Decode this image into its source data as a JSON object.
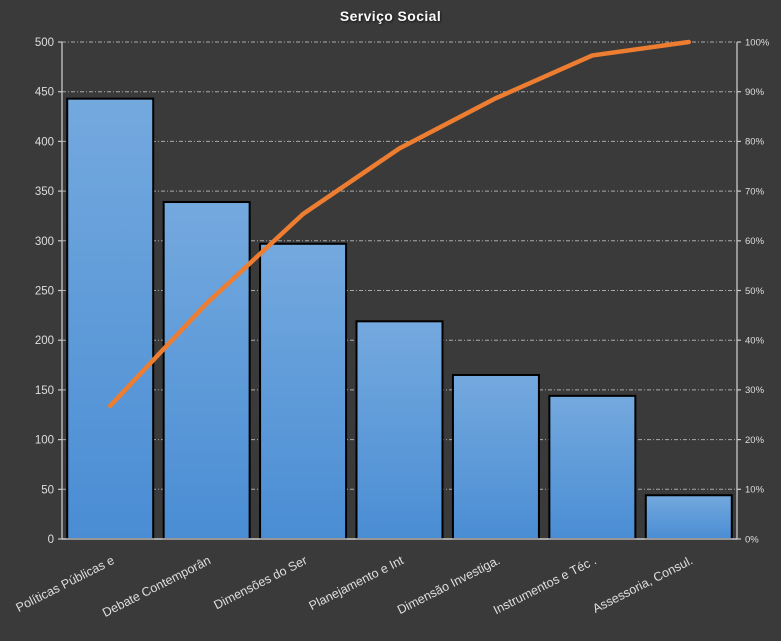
{
  "window": {
    "background_color": "#3a3a3a"
  },
  "chart_data": {
    "type": "pareto",
    "title": "Serviço Social",
    "categories": [
      "Políticas Públicas e",
      "Debate Contemporân",
      "Dimensões do Ser",
      "Planejamento e Int",
      "Dimensão Investiga.",
      "Instrumentos e Téc .",
      "Assessoria, Consul."
    ],
    "bar_values": [
      443,
      339,
      297,
      219,
      165,
      144,
      44
    ],
    "cumulative_pct": [
      26.8,
      47.4,
      65.4,
      78.6,
      88.7,
      97.3,
      100
    ],
    "y_left": {
      "min": 0,
      "max": 500,
      "step": 50,
      "tick_labels": [
        "0",
        "50",
        "100",
        "150",
        "200",
        "250",
        "300",
        "350",
        "400",
        "450",
        "500"
      ]
    },
    "y_right": {
      "min": 0,
      "max": 100,
      "step": 10,
      "tick_labels": [
        "0%",
        "10%",
        "20%",
        "30%",
        "40%",
        "50%",
        "60%",
        "70%",
        "80%",
        "90%",
        "100%"
      ]
    },
    "grid": true,
    "legend": "none",
    "colors": {
      "background": "#3a3a3a",
      "bar_fill_top": "#74a9de",
      "bar_fill_bottom": "#4a8dd4",
      "bar_border": "#000000",
      "line": "#ed7d31",
      "gridline": "#d8d8d8",
      "axis": "#c9c9c9",
      "tick_text": "#dedede",
      "title_text": "#fbfbfb"
    }
  }
}
